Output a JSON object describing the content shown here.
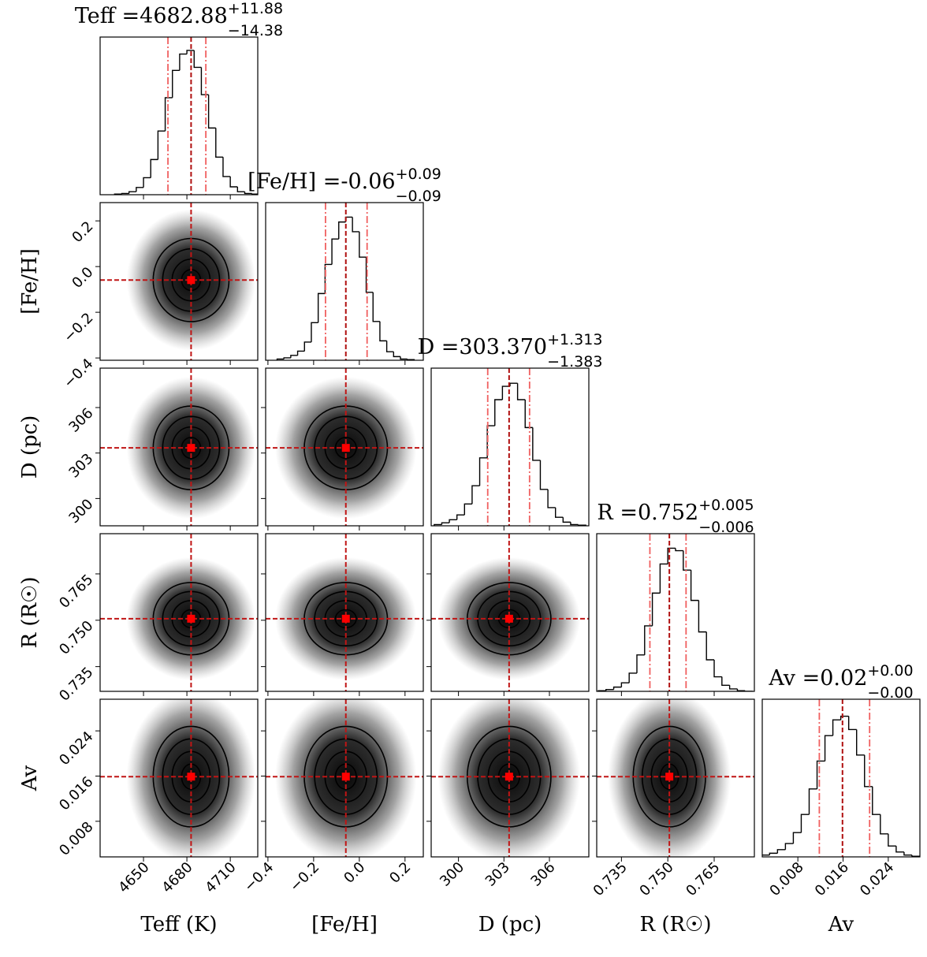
{
  "chart_data": {
    "type": "corner",
    "hist_ylim": [
      0,
      260
    ],
    "params": [
      {
        "label": "Teff (K)",
        "title": "Teff =4682.88",
        "err_plus": "+11.88",
        "err_minus": "−14.38",
        "truth": 4682.9,
        "q16": 4666.9,
        "q84": 4693.1,
        "lim": [
          4620,
          4729
        ],
        "ticks": [
          4650,
          4680,
          4710
        ],
        "bins": [
          4630,
          4635,
          4640,
          4645,
          4650,
          4655,
          4660,
          4665,
          4670,
          4675,
          4680,
          4685,
          4690,
          4695,
          4700,
          4705,
          4710,
          4715,
          4720,
          4725,
          4730
        ],
        "counts": [
          1,
          2,
          5,
          12,
          28,
          58,
          105,
          160,
          205,
          232,
          238,
          210,
          165,
          110,
          62,
          30,
          13,
          5,
          2,
          1
        ]
      },
      {
        "label": "[Fe/H]",
        "title": "[Fe/H] =-0.06",
        "err_plus": "+0.09",
        "err_minus": "−0.09",
        "truth": -0.059,
        "q16": -0.148,
        "q84": 0.034,
        "lim": [
          -0.41,
          0.28
        ],
        "ticks": [
          {
            "value": -0.4,
            "label": "−0.4"
          },
          {
            "value": -0.2,
            "label": "−0.2"
          },
          {
            "value": 0,
            "label": "0.0"
          },
          0.2
        ],
        "bins": [
          -0.36,
          -0.33,
          -0.3,
          -0.27,
          -0.24,
          -0.21,
          -0.18,
          -0.15,
          -0.12,
          -0.09,
          -0.06,
          -0.03,
          0.0,
          0.03,
          0.06,
          0.09,
          0.12,
          0.15,
          0.18,
          0.21,
          0.24
        ],
        "counts": [
          2,
          4,
          8,
          15,
          30,
          62,
          110,
          158,
          200,
          228,
          236,
          212,
          170,
          112,
          64,
          32,
          14,
          6,
          2,
          1
        ]
      },
      {
        "label": "D (pc)",
        "title": "D =303.370",
        "err_plus": "+1.313",
        "err_minus": "−1.383",
        "truth": 303.34,
        "q16": 301.93,
        "q84": 304.69,
        "lim": [
          298.2,
          308.6
        ],
        "ticks": [
          300,
          303,
          306
        ],
        "bins": [
          298.4,
          298.9,
          299.4,
          299.9,
          300.4,
          300.9,
          301.4,
          301.9,
          302.4,
          302.9,
          303.4,
          303.9,
          304.4,
          304.9,
          305.4,
          305.9,
          306.4,
          306.9,
          307.4,
          307.9,
          308.4
        ],
        "counts": [
          2,
          5,
          10,
          18,
          36,
          66,
          112,
          165,
          208,
          230,
          235,
          208,
          162,
          108,
          60,
          30,
          14,
          6,
          2,
          1
        ]
      },
      {
        "label": "R (R☉)",
        "title": "R =0.752",
        "err_plus": "+0.005",
        "err_minus": "−0.006",
        "truth": 0.7505,
        "q16": 0.7442,
        "q84": 0.7559,
        "lim": [
          0.727,
          0.778
        ],
        "ticks": [
          0.735,
          {
            "value": 0.75,
            "label": "0.750"
          },
          0.765
        ],
        "bins": [
          0.7275,
          0.73,
          0.7325,
          0.735,
          0.7375,
          0.74,
          0.7425,
          0.745,
          0.7475,
          0.75,
          0.7525,
          0.755,
          0.7575,
          0.76,
          0.7625,
          0.765,
          0.7675,
          0.77,
          0.7725,
          0.775,
          0.7775
        ],
        "counts": [
          1,
          3,
          7,
          14,
          30,
          60,
          108,
          162,
          210,
          236,
          232,
          200,
          150,
          98,
          52,
          24,
          10,
          4,
          1,
          0
        ]
      },
      {
        "label": "Av",
        "title": "Av =0.02",
        "err_plus": "+0.00",
        "err_minus": "−0.00",
        "truth": 0.0159,
        "q16": 0.0118,
        "q84": 0.0207,
        "lim": [
          0.0017,
          0.0296
        ],
        "ticks": [
          0.008,
          0.016,
          0.024
        ],
        "bins": [
          0.0016,
          0.003,
          0.0044,
          0.0058,
          0.0072,
          0.0086,
          0.01,
          0.0114,
          0.0128,
          0.0142,
          0.0156,
          0.017,
          0.0184,
          0.0198,
          0.0212,
          0.0226,
          0.024,
          0.0254,
          0.0268,
          0.0282,
          0.0296
        ],
        "counts": [
          3,
          6,
          12,
          22,
          40,
          70,
          112,
          158,
          200,
          226,
          232,
          210,
          168,
          116,
          70,
          38,
          18,
          8,
          3,
          1
        ]
      }
    ]
  }
}
